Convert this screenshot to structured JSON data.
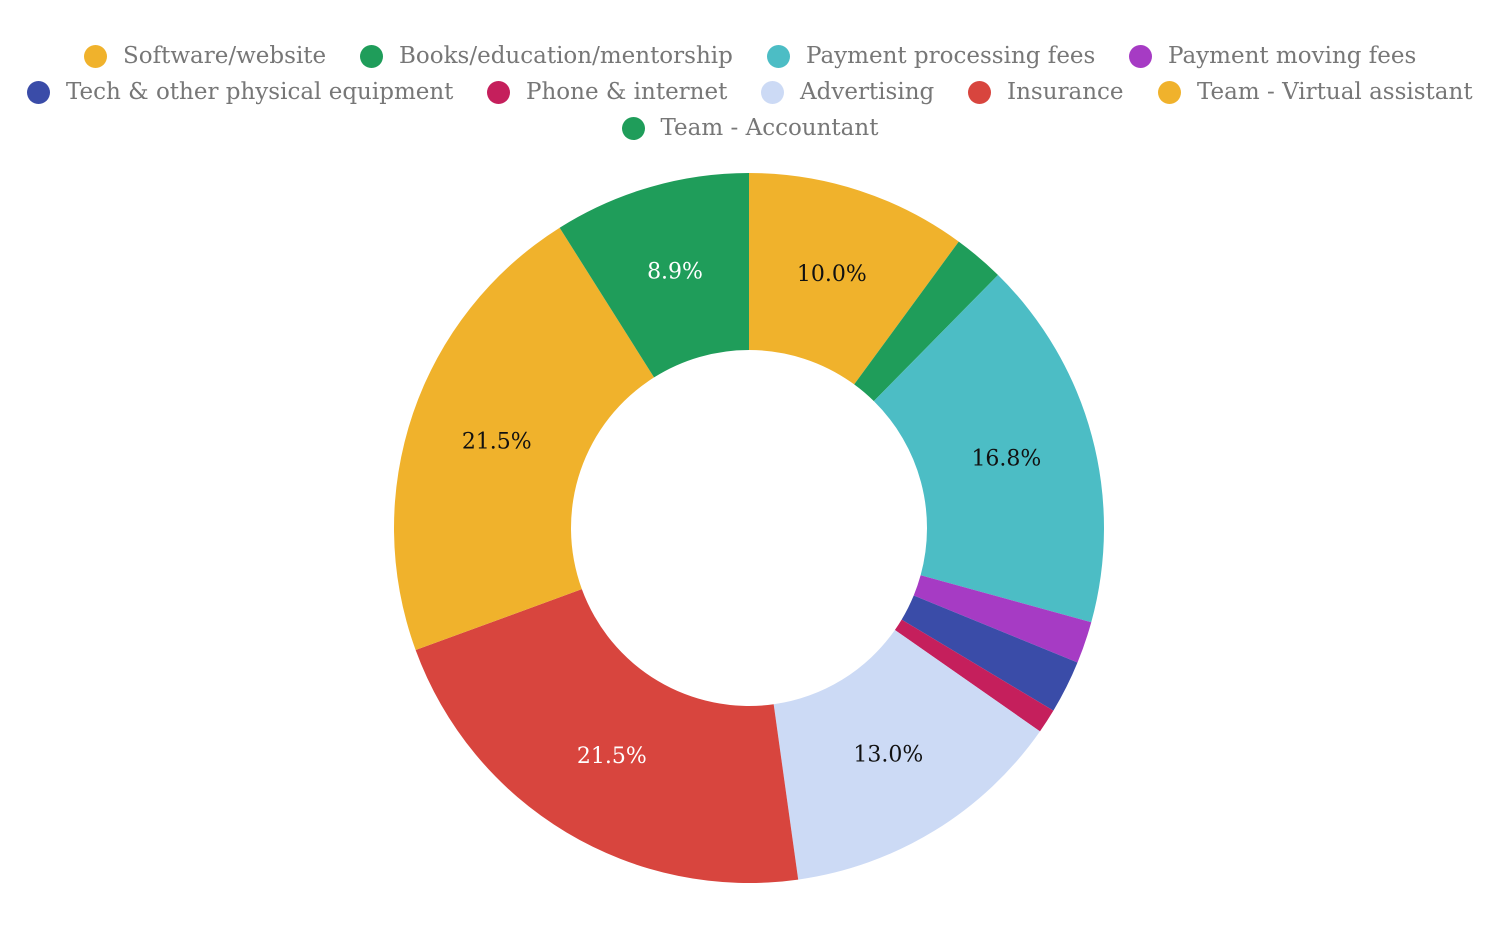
{
  "chart_data": {
    "type": "pie",
    "variant": "donut",
    "legend_position": "top",
    "categories": [
      "Software/website",
      "Books/education/mentorship",
      "Payment processing fees",
      "Payment moving fees",
      "Tech & other physical equipment",
      "Phone & internet",
      "Advertising",
      "Insurance",
      "Team - Virtual assistant",
      "Team - Accountant"
    ],
    "values": [
      10.0,
      2.3,
      16.8,
      1.9,
      2.4,
      1.1,
      13.0,
      21.5,
      21.5,
      8.9
    ],
    "data_labels": [
      "10.0%",
      "",
      "16.8%",
      "",
      "",
      "",
      "13.0%",
      "21.5%",
      "21.5%",
      "8.9%"
    ],
    "colors": [
      "#F0B22C",
      "#1F9D5A",
      "#4CBDC5",
      "#A63BC4",
      "#3A4CA8",
      "#C51F5C",
      "#CCDAF5",
      "#D8453E",
      "#F0B22C",
      "#1F9D5A"
    ],
    "label_colors": [
      "#111111",
      "#ffffff",
      "#111111",
      "#ffffff",
      "#ffffff",
      "#ffffff",
      "#111111",
      "#ffffff",
      "#111111",
      "#ffffff"
    ]
  }
}
